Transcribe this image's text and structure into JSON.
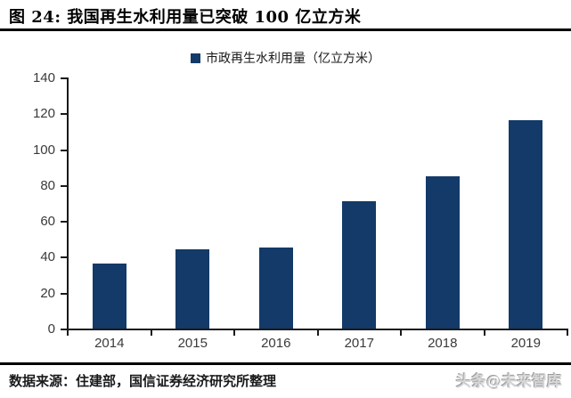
{
  "header": {
    "title": "图 24:  我国再生水利用量已突破 100 亿立方米"
  },
  "legend": {
    "label": "市政再生水利用量（亿立方米）"
  },
  "chart_data": {
    "type": "bar",
    "title": "图 24:  我国再生水利用量已突破 100 亿立方米",
    "series_name": "市政再生水利用量（亿立方米）",
    "categories": [
      "2014",
      "2015",
      "2016",
      "2017",
      "2018",
      "2019"
    ],
    "values": [
      36,
      44,
      45,
      71,
      85,
      116
    ],
    "xlabel": "",
    "ylabel": "",
    "ylim": [
      0,
      140
    ],
    "yticks": [
      0,
      20,
      40,
      60,
      80,
      100,
      120,
      140
    ],
    "grid": false,
    "legend_position": "top-center",
    "bar_color": "#133a68",
    "axis_color": "#1a1a1a"
  },
  "footer": {
    "source": "数据来源：住建部，国信证券经济研究所整理",
    "watermark": "头条@未来智库"
  }
}
